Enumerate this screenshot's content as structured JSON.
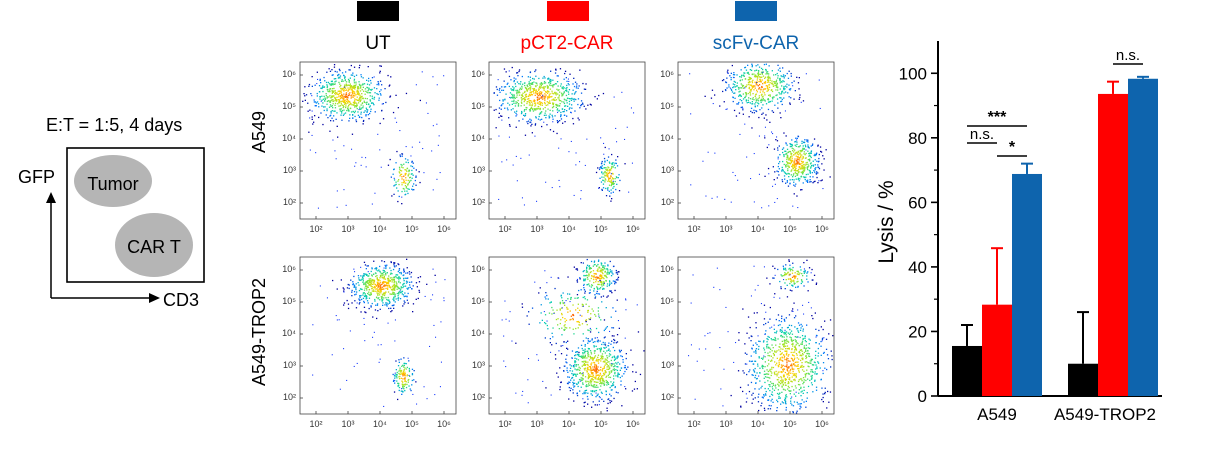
{
  "schematic": {
    "condition": "E:T = 1:5, 4 days",
    "y_axis_label": "GFP",
    "x_axis_label": "CD3",
    "upper_population": "Tumor",
    "lower_population": "CAR T"
  },
  "flow": {
    "column_labels": [
      "UT",
      "pCT2-CAR",
      "scFv-CAR"
    ],
    "column_colors": [
      "#000000",
      "#ff0000",
      "#0e64ad"
    ],
    "row_labels": [
      "A549",
      "A549-TROP2"
    ],
    "axis_tick_labels": [
      "10²",
      "10³",
      "10⁴",
      "10⁵",
      "10⁶"
    ]
  },
  "chart_data": {
    "type": "bar",
    "categories": [
      "A549",
      "A549-TROP2"
    ],
    "series": [
      {
        "values": [
          15.5,
          10
        ],
        "errors": [
          6.5,
          16
        ],
        "color": "#000000"
      },
      {
        "values": [
          28.3,
          93.6
        ],
        "errors": [
          17.5,
          3.8
        ],
        "color": "#ff0000"
      },
      {
        "values": [
          68.8,
          98.3
        ],
        "errors": [
          3.2,
          0.6
        ],
        "color": "#0e64ad"
      }
    ],
    "ylabel": "Lysis / %",
    "ylim": [
      0,
      110
    ],
    "yticks": [
      0,
      20,
      40,
      60,
      80,
      100
    ],
    "significance": [
      {
        "label": "***",
        "category": 0,
        "from": 0,
        "to": 2
      },
      {
        "label": "n.s.",
        "category": 0,
        "from": 0,
        "to": 1
      },
      {
        "label": "*",
        "category": 0,
        "from": 1,
        "to": 2
      },
      {
        "label": "n.s.",
        "category": 1,
        "from": 1,
        "to": 2
      }
    ]
  }
}
